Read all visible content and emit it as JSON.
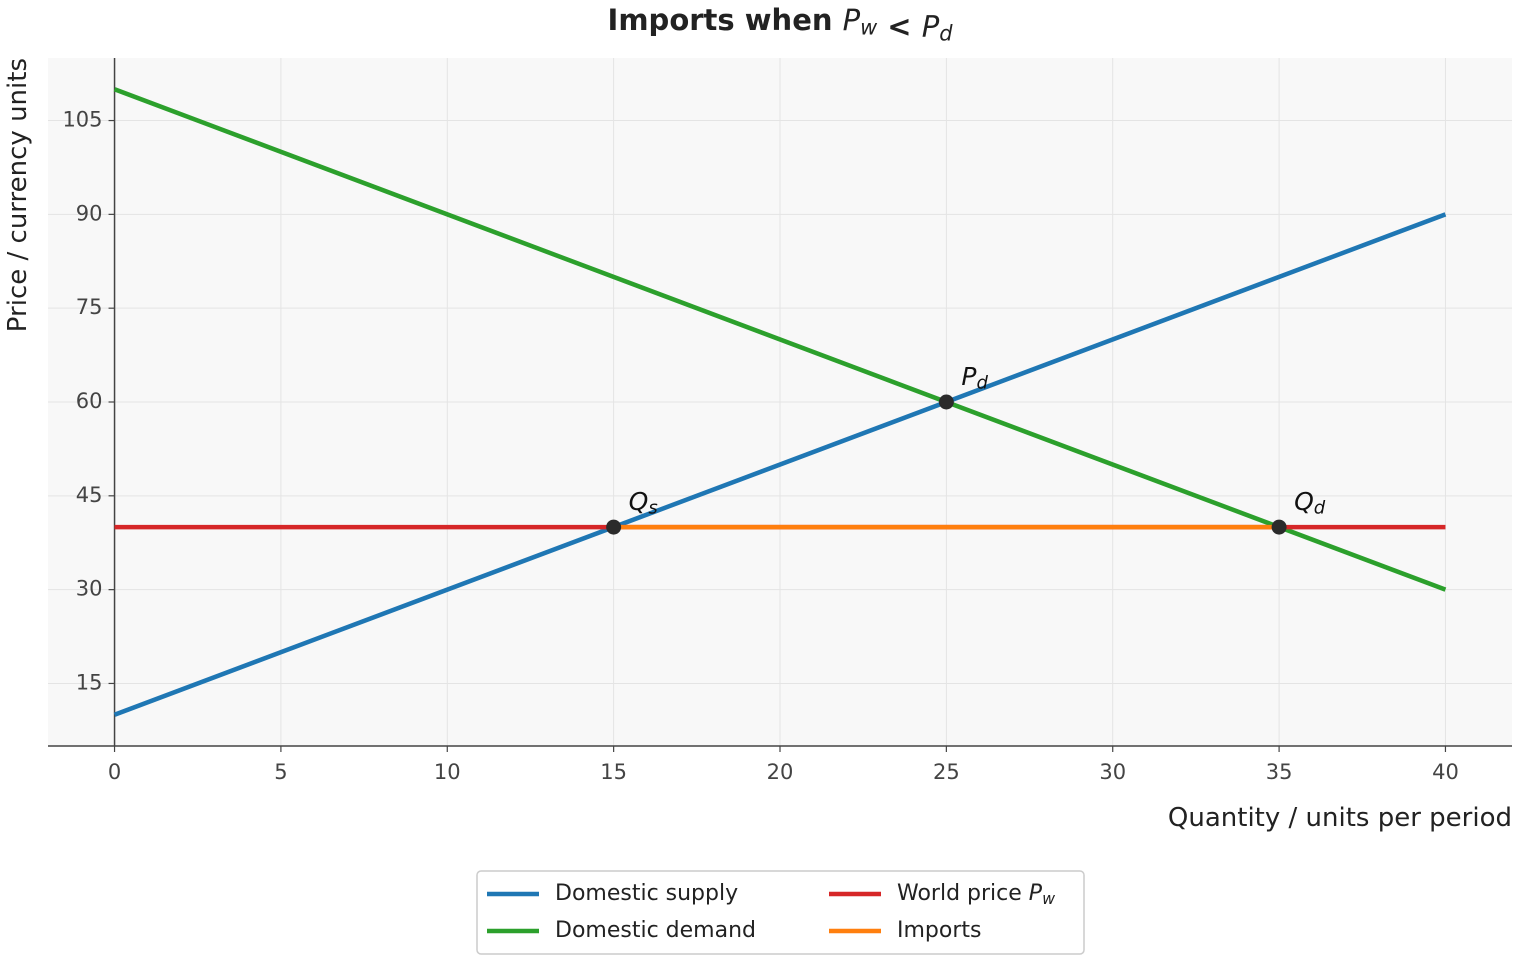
{
  "chart_data": {
    "type": "line",
    "title": "Imports when P_w < P_d",
    "x_label": "Quantity / units per period",
    "y_label": "Price / currency units",
    "xlim": [
      -2,
      42
    ],
    "ylim": [
      5,
      115
    ],
    "xticks": [
      0,
      5,
      10,
      15,
      20,
      25,
      30,
      35,
      40
    ],
    "yticks": [
      15,
      30,
      45,
      60,
      75,
      90,
      105
    ],
    "grid": true,
    "legend_position": "bottom",
    "series": [
      {
        "name": "Domestic supply",
        "color": "#1f77b4",
        "x": [
          0,
          40
        ],
        "values": [
          10,
          90
        ]
      },
      {
        "name": "Domestic demand",
        "color": "#2ca02c",
        "x": [
          0,
          40
        ],
        "values": [
          110,
          30
        ]
      },
      {
        "name": "World price P_w",
        "color": "#d62728",
        "x": [
          0,
          40
        ],
        "values": [
          40,
          40
        ]
      },
      {
        "name": "Imports",
        "color": "#ff7f0e",
        "x": [
          15,
          35
        ],
        "values": [
          40,
          40
        ]
      }
    ],
    "points": {
      "color": "#2b2b2b",
      "x": [
        15,
        25,
        35
      ],
      "values": [
        40,
        60,
        40
      ],
      "labels": [
        "Q_s",
        "P_d",
        "Q_d"
      ]
    }
  }
}
